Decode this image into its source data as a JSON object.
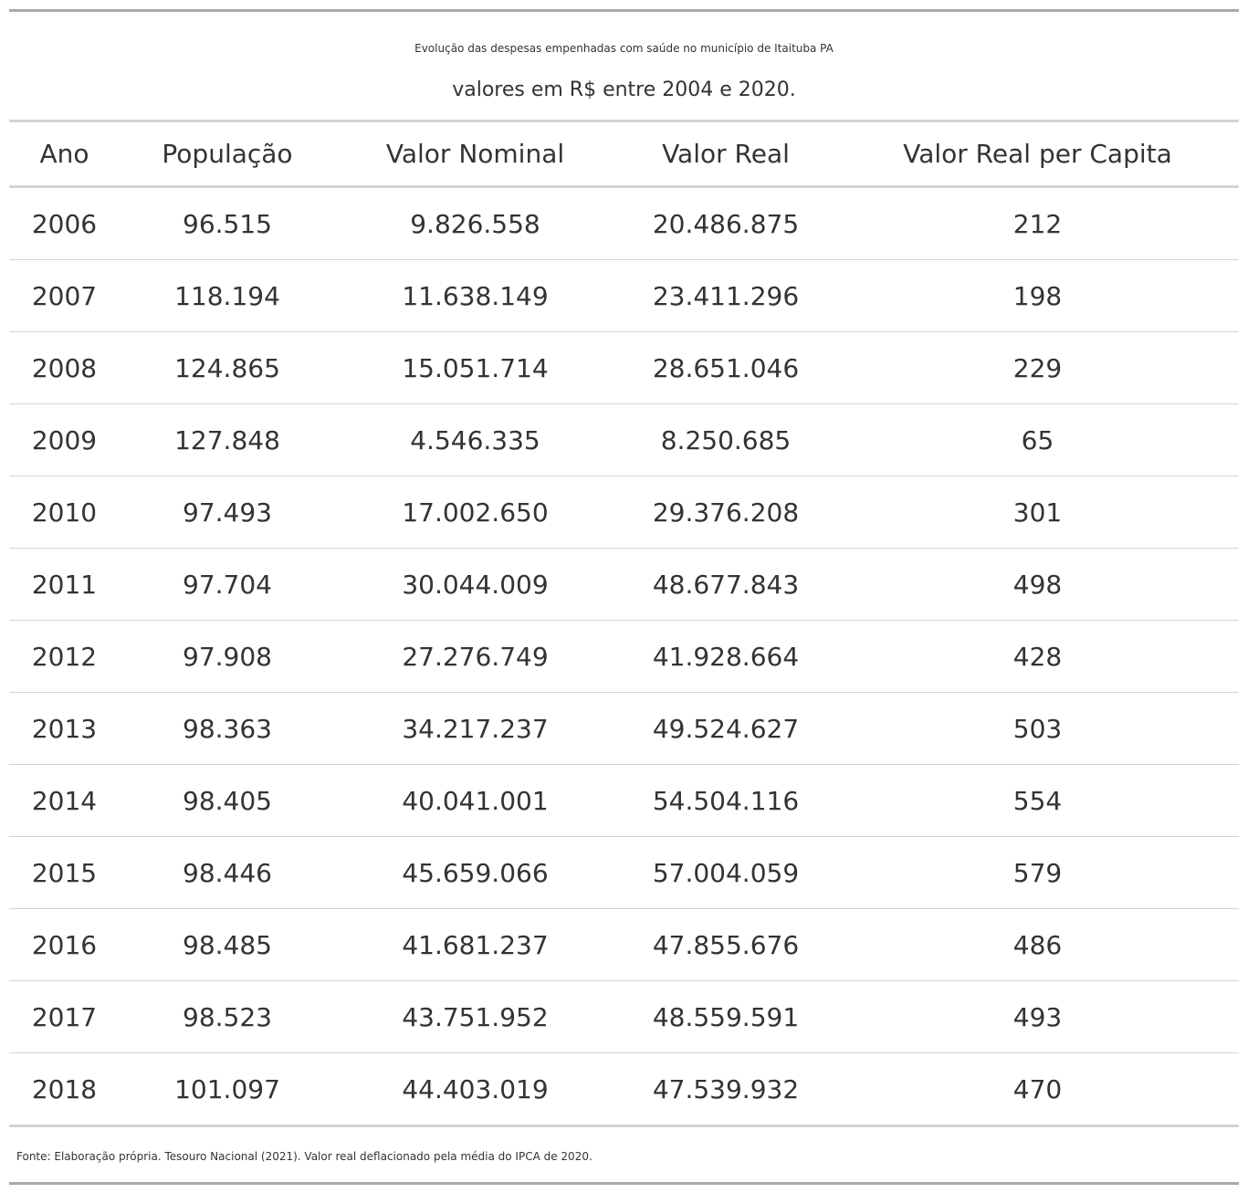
{
  "chart_data": {
    "type": "table",
    "title": "Evolução das despesas empenhadas com saúde no município de Itaituba PA",
    "subtitle": "valores em R$ entre 2004 e 2020.",
    "columns": [
      "Ano",
      "População",
      "Valor Nominal",
      "Valor Real",
      "Valor Real per Capita"
    ],
    "rows": [
      [
        "2006",
        "96.515",
        "9.826.558",
        "20.486.875",
        "212"
      ],
      [
        "2007",
        "118.194",
        "11.638.149",
        "23.411.296",
        "198"
      ],
      [
        "2008",
        "124.865",
        "15.051.714",
        "28.651.046",
        "229"
      ],
      [
        "2009",
        "127.848",
        "4.546.335",
        "8.250.685",
        "65"
      ],
      [
        "2010",
        "97.493",
        "17.002.650",
        "29.376.208",
        "301"
      ],
      [
        "2011",
        "97.704",
        "30.044.009",
        "48.677.843",
        "498"
      ],
      [
        "2012",
        "97.908",
        "27.276.749",
        "41.928.664",
        "428"
      ],
      [
        "2013",
        "98.363",
        "34.217.237",
        "49.524.627",
        "503"
      ],
      [
        "2014",
        "98.405",
        "40.041.001",
        "54.504.116",
        "554"
      ],
      [
        "2015",
        "98.446",
        "45.659.066",
        "57.004.059",
        "579"
      ],
      [
        "2016",
        "98.485",
        "41.681.237",
        "47.855.676",
        "486"
      ],
      [
        "2017",
        "98.523",
        "43.751.952",
        "48.559.591",
        "493"
      ],
      [
        "2018",
        "101.097",
        "44.403.019",
        "47.539.932",
        "470"
      ]
    ],
    "source_note": "Fonte: Elaboração própria. Tesouro Nacional (2021). Valor real deflacionado pela média do IPCA de 2020."
  }
}
